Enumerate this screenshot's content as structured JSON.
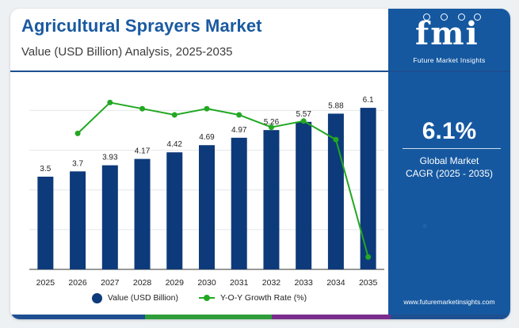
{
  "header": {
    "title": "Agricultural Sprayers Market",
    "subtitle": "Value (USD Billion) Analysis, 2025-2035"
  },
  "legend": {
    "bar_label": "Value (USD Billion)",
    "line_label": "Y-O-Y Growth Rate (%)"
  },
  "side_panel": {
    "logo_text": "fmi",
    "logo_subtitle": "Future Market Insights",
    "cagr_value": "6.1%",
    "cagr_label_line1": "Global Market",
    "cagr_label_line2": "CAGR (2025 - 2035)",
    "website": "www.futuremarketinsights.com"
  },
  "colors": {
    "bar": "#0d3a7a",
    "line": "#22a822",
    "title": "#1a5aa0",
    "panel": "#1558a0",
    "stripe": [
      "#1d4f91",
      "#2f9e3a",
      "#7a2d8c",
      "#1d4f91"
    ]
  },
  "chart_data": {
    "type": "bar",
    "categories": [
      "2025",
      "2026",
      "2027",
      "2028",
      "2029",
      "2030",
      "2031",
      "2032",
      "2033",
      "2034",
      "2035"
    ],
    "series": [
      {
        "name": "Value (USD Billion)",
        "type": "bar",
        "values": [
          3.5,
          3.7,
          3.93,
          4.17,
          4.42,
          4.69,
          4.97,
          5.26,
          5.57,
          5.88,
          6.1
        ],
        "labels": [
          "3.5",
          "3.7",
          "3.93",
          "4.17",
          "4.42",
          "4.69",
          "4.97",
          "5.26",
          "5.57",
          "5.88",
          "6.1"
        ]
      },
      {
        "name": "Y-O-Y Growth Rate (%)",
        "type": "line",
        "values": [
          null,
          5.7,
          6.2,
          6.1,
          6.0,
          6.1,
          6.0,
          5.8,
          5.9,
          5.6,
          3.7
        ]
      }
    ],
    "ylim": [
      0,
      7
    ],
    "y2lim": [
      3.5,
      6.5
    ],
    "grid": true,
    "legend_position": "bottom"
  }
}
